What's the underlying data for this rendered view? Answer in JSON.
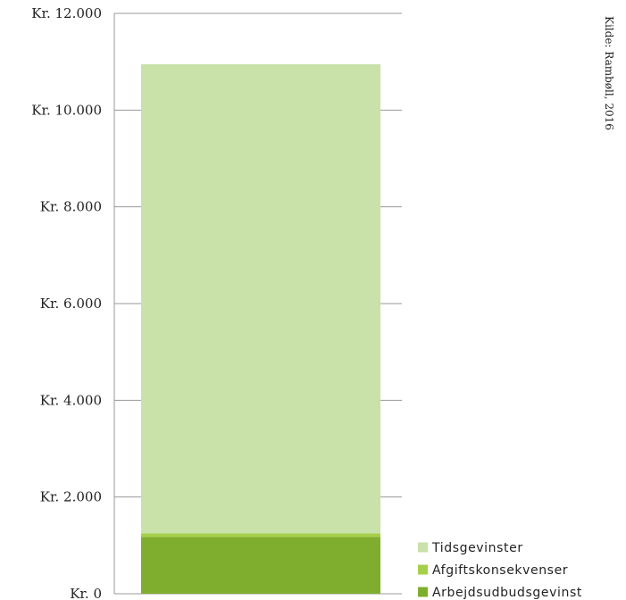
{
  "chart_data": {
    "type": "bar",
    "stacked": true,
    "categories": [
      ""
    ],
    "series": [
      {
        "name": "Arbejdsudbudsgevinst",
        "values": [
          1175
        ],
        "color": "#7fae2e"
      },
      {
        "name": "Afgiftskonsekvenser",
        "values": [
          75
        ],
        "color": "#a6cf4a"
      },
      {
        "name": "Tidsgevinster",
        "values": [
          9700
        ],
        "color": "#c8e2aa"
      }
    ],
    "ylim": [
      0,
      12000
    ],
    "y_ticks": [
      0,
      2000,
      4000,
      6000,
      8000,
      10000,
      12000
    ],
    "y_tick_labels": [
      "Kr. 0",
      "Kr. 2.000",
      "Kr. 4.000",
      "Kr. 6.000",
      "Kr. 8.000",
      "Kr. 10.000",
      "Kr. 12.000"
    ],
    "legend_position": "bottom-right",
    "grid": false,
    "source": "Kilde: Rambøll, 2016"
  }
}
